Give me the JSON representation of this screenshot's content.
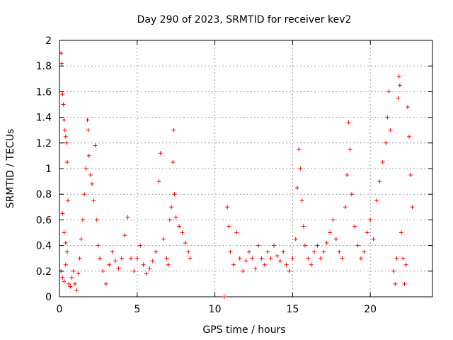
{
  "chart_data": {
    "type": "scatter",
    "title": "Day 290 of 2023, SRMTID for receiver kev2",
    "xlabel": "GPS time / hours",
    "ylabel": "SRMTID / TECUs",
    "xlim": [
      0,
      24
    ],
    "ylim": [
      0,
      2
    ],
    "xticks": [
      0,
      5,
      10,
      15,
      20
    ],
    "yticks": [
      0,
      0.2,
      0.4,
      0.6,
      0.8,
      1,
      1.2,
      1.4,
      1.6,
      1.8,
      2
    ],
    "xtick_labels": [
      "0",
      "5",
      "10",
      "15",
      "20"
    ],
    "ytick_labels": [
      "0",
      "0.2",
      "0.4",
      "0.6",
      "0.8",
      "1",
      "1.2",
      "1.4",
      "1.6",
      "1.8",
      "2"
    ],
    "grid": true,
    "marker": "+",
    "color": "#ff0000",
    "series": [
      {
        "name": "SRMTID",
        "points": [
          [
            0.1,
            1.9
          ],
          [
            0.15,
            1.82
          ],
          [
            0.2,
            1.58
          ],
          [
            0.25,
            1.5
          ],
          [
            0.3,
            1.38
          ],
          [
            0.35,
            1.3
          ],
          [
            0.4,
            1.25
          ],
          [
            0.45,
            1.2
          ],
          [
            0.5,
            1.05
          ],
          [
            0.55,
            0.75
          ],
          [
            0.2,
            0.65
          ],
          [
            0.3,
            0.5
          ],
          [
            0.4,
            0.42
          ],
          [
            0.5,
            0.35
          ],
          [
            0.1,
            0.2
          ],
          [
            0.2,
            0.15
          ],
          [
            0.3,
            0.12
          ],
          [
            0.4,
            0.25
          ],
          [
            0.6,
            0.1
          ],
          [
            0.7,
            0.08
          ],
          [
            0.8,
            0.15
          ],
          [
            0.9,
            0.2
          ],
          [
            1.0,
            0.1
          ],
          [
            1.1,
            0.05
          ],
          [
            1.2,
            0.18
          ],
          [
            1.3,
            0.3
          ],
          [
            1.4,
            0.45
          ],
          [
            1.5,
            0.6
          ],
          [
            1.6,
            0.8
          ],
          [
            1.7,
            1.0
          ],
          [
            1.8,
            1.38
          ],
          [
            1.85,
            1.3
          ],
          [
            1.9,
            1.1
          ],
          [
            2.0,
            0.95
          ],
          [
            2.1,
            0.88
          ],
          [
            2.2,
            0.75
          ],
          [
            2.3,
            1.18
          ],
          [
            2.4,
            0.6
          ],
          [
            2.5,
            0.4
          ],
          [
            2.6,
            0.3
          ],
          [
            2.8,
            0.2
          ],
          [
            3.0,
            0.1
          ],
          [
            3.2,
            0.25
          ],
          [
            3.4,
            0.35
          ],
          [
            3.6,
            0.28
          ],
          [
            3.8,
            0.22
          ],
          [
            4.0,
            0.3
          ],
          [
            4.2,
            0.48
          ],
          [
            4.4,
            0.62
          ],
          [
            4.6,
            0.3
          ],
          [
            4.8,
            0.2
          ],
          [
            5.0,
            0.3
          ],
          [
            5.2,
            0.4
          ],
          [
            5.4,
            0.25
          ],
          [
            5.6,
            0.18
          ],
          [
            5.8,
            0.22
          ],
          [
            6.0,
            0.28
          ],
          [
            6.2,
            0.35
          ],
          [
            6.4,
            0.9
          ],
          [
            6.5,
            1.12
          ],
          [
            6.7,
            0.45
          ],
          [
            6.9,
            0.3
          ],
          [
            7.0,
            0.25
          ],
          [
            7.1,
            0.6
          ],
          [
            7.2,
            0.7
          ],
          [
            7.3,
            1.05
          ],
          [
            7.35,
            1.3
          ],
          [
            7.4,
            0.8
          ],
          [
            7.5,
            0.62
          ],
          [
            7.7,
            0.55
          ],
          [
            7.9,
            0.5
          ],
          [
            8.1,
            0.42
          ],
          [
            8.3,
            0.35
          ],
          [
            8.4,
            0.3
          ],
          [
            10.6,
            0.0
          ],
          [
            10.8,
            0.7
          ],
          [
            10.9,
            0.55
          ],
          [
            11.0,
            0.35
          ],
          [
            11.2,
            0.25
          ],
          [
            11.4,
            0.5
          ],
          [
            11.6,
            0.3
          ],
          [
            11.8,
            0.2
          ],
          [
            12.0,
            0.28
          ],
          [
            12.2,
            0.35
          ],
          [
            12.4,
            0.3
          ],
          [
            12.6,
            0.22
          ],
          [
            12.8,
            0.4
          ],
          [
            13.0,
            0.3
          ],
          [
            13.2,
            0.25
          ],
          [
            13.4,
            0.35
          ],
          [
            13.6,
            0.3
          ],
          [
            13.8,
            0.4
          ],
          [
            14.0,
            0.32
          ],
          [
            14.2,
            0.28
          ],
          [
            14.4,
            0.35
          ],
          [
            14.6,
            0.25
          ],
          [
            14.8,
            0.2
          ],
          [
            15.0,
            0.3
          ],
          [
            15.2,
            0.45
          ],
          [
            15.3,
            0.85
          ],
          [
            15.4,
            1.15
          ],
          [
            15.5,
            1.0
          ],
          [
            15.6,
            0.75
          ],
          [
            15.7,
            0.55
          ],
          [
            15.8,
            0.4
          ],
          [
            16.0,
            0.3
          ],
          [
            16.2,
            0.25
          ],
          [
            16.4,
            0.35
          ],
          [
            16.6,
            0.4
          ],
          [
            16.8,
            0.3
          ],
          [
            17.0,
            0.35
          ],
          [
            17.2,
            0.42
          ],
          [
            17.4,
            0.5
          ],
          [
            17.6,
            0.6
          ],
          [
            17.8,
            0.45
          ],
          [
            18.0,
            0.35
          ],
          [
            18.2,
            0.3
          ],
          [
            18.4,
            0.7
          ],
          [
            18.5,
            0.95
          ],
          [
            18.6,
            1.36
          ],
          [
            18.7,
            1.15
          ],
          [
            18.8,
            0.8
          ],
          [
            19.0,
            0.55
          ],
          [
            19.2,
            0.4
          ],
          [
            19.4,
            0.3
          ],
          [
            19.6,
            0.35
          ],
          [
            19.8,
            0.5
          ],
          [
            20.0,
            0.6
          ],
          [
            20.2,
            0.45
          ],
          [
            20.4,
            0.75
          ],
          [
            20.6,
            0.9
          ],
          [
            20.8,
            1.05
          ],
          [
            21.0,
            1.2
          ],
          [
            21.1,
            1.4
          ],
          [
            21.2,
            1.6
          ],
          [
            21.3,
            1.3
          ],
          [
            21.5,
            0.2
          ],
          [
            21.6,
            0.1
          ],
          [
            21.7,
            0.3
          ],
          [
            21.8,
            1.55
          ],
          [
            21.85,
            1.72
          ],
          [
            21.9,
            1.65
          ],
          [
            22.0,
            0.5
          ],
          [
            22.1,
            0.3
          ],
          [
            22.2,
            0.1
          ],
          [
            22.3,
            0.25
          ],
          [
            22.4,
            1.48
          ],
          [
            22.5,
            1.25
          ],
          [
            22.6,
            0.95
          ],
          [
            22.7,
            0.7
          ]
        ]
      }
    ]
  }
}
